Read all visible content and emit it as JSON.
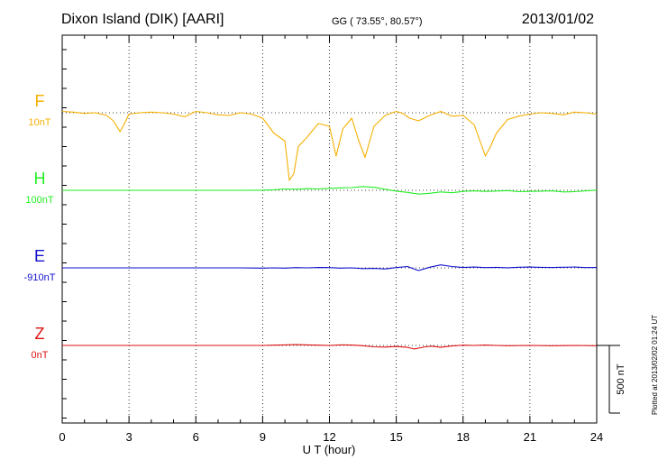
{
  "header": {
    "station": "Dixon Island (DIK)  [AARI]",
    "coords": "GG ( 73.55°,  80.57°)",
    "date": "2013/01/02"
  },
  "plotted_note": "Plotted at 2013/02/02 01:24 UT",
  "chart_data": {
    "type": "line",
    "xlabel": "U T (hour)",
    "xlim": [
      0,
      24
    ],
    "x_ticks": [
      0,
      3,
      6,
      9,
      12,
      15,
      18,
      21,
      24
    ],
    "scale_bar": {
      "value": 500,
      "label": "500 nT"
    },
    "series": [
      {
        "name": "F",
        "scale_label": "10nT",
        "color": "#f5b000",
        "x": [
          0,
          0.5,
          1,
          1.5,
          2,
          2.3,
          2.6,
          2.8,
          3,
          3.5,
          4,
          4.5,
          5,
          5.5,
          6,
          6.5,
          7,
          7.5,
          8,
          8.5,
          9,
          9.5,
          10,
          10.2,
          10.4,
          10.6,
          11,
          11.5,
          12,
          12.3,
          12.6,
          13,
          13.3,
          13.6,
          14,
          14.5,
          15,
          15.3,
          15.6,
          16,
          16.5,
          17,
          17.5,
          18,
          18.5,
          19,
          19.2,
          19.5,
          20,
          20.5,
          21,
          21.5,
          22,
          22.5,
          23,
          23.5,
          24
        ],
        "y": [
          10,
          5,
          -5,
          0,
          -20,
          -60,
          -140,
          -80,
          -10,
          0,
          5,
          0,
          -10,
          -30,
          10,
          0,
          -15,
          -20,
          0,
          -10,
          -40,
          -150,
          -210,
          -500,
          -450,
          -250,
          -180,
          -80,
          -100,
          -320,
          -120,
          -40,
          -200,
          -330,
          -100,
          -20,
          10,
          -5,
          -40,
          -60,
          -20,
          10,
          -25,
          -20,
          -90,
          -320,
          -260,
          -150,
          -50,
          -25,
          -10,
          0,
          -5,
          -15,
          5,
          0,
          -10
        ]
      },
      {
        "name": "H",
        "scale_label": "100nT",
        "color": "#22ee22",
        "x": [
          0,
          1,
          2,
          3,
          4,
          5,
          6,
          7,
          8,
          9,
          9.5,
          10,
          10.5,
          11,
          11.5,
          12,
          12.5,
          13,
          13.5,
          14,
          14.5,
          15,
          15.5,
          16,
          16.5,
          17,
          17.5,
          18,
          18.5,
          19,
          19.5,
          20,
          20.5,
          21,
          21.5,
          22,
          22.5,
          23,
          23.5,
          24
        ],
        "y": [
          0,
          0,
          0,
          0,
          0,
          0,
          0,
          0,
          0,
          1,
          4,
          10,
          8,
          12,
          10,
          15,
          18,
          20,
          28,
          22,
          8,
          -6,
          -15,
          -28,
          -22,
          -12,
          -18,
          -8,
          -4,
          -8,
          -5,
          -2,
          -10,
          -8,
          -6,
          -4,
          -12,
          -10,
          -4,
          1
        ]
      },
      {
        "name": "E",
        "scale_label": "-910nT",
        "color": "#1111cc",
        "x": [
          0,
          1,
          2,
          3,
          4,
          5,
          6,
          7,
          8,
          9,
          9.5,
          10,
          10.5,
          11,
          11.5,
          12,
          12.5,
          13,
          13.5,
          14,
          14.5,
          15,
          15.5,
          16,
          16.5,
          17,
          17.5,
          18,
          18.5,
          19,
          19.5,
          20,
          20.5,
          21,
          21.5,
          22,
          22.5,
          23,
          23.5,
          24
        ],
        "y": [
          0,
          0,
          0,
          0,
          0,
          0,
          0,
          0,
          0,
          -2,
          0,
          -2,
          2,
          0,
          3,
          2,
          -2,
          0,
          -5,
          -4,
          -8,
          2,
          10,
          -20,
          5,
          22,
          10,
          3,
          6,
          2,
          4,
          1,
          5,
          6,
          4,
          3,
          5,
          6,
          2,
          3
        ]
      },
      {
        "name": "Z",
        "scale_label": "0nT",
        "color": "#dd1111",
        "x": [
          0,
          1,
          2,
          3,
          4,
          5,
          6,
          7,
          8,
          9,
          9.5,
          10,
          10.5,
          11,
          11.5,
          12,
          12.5,
          13,
          13.5,
          14,
          14.5,
          15,
          15.5,
          15.8,
          16,
          16.3,
          16.6,
          17,
          17.5,
          18,
          18.5,
          19,
          19.5,
          20,
          21,
          22,
          23,
          24
        ],
        "y": [
          0,
          0,
          0,
          0,
          0,
          0,
          0,
          0,
          0,
          0,
          2,
          4,
          6,
          4,
          2,
          0,
          4,
          3,
          -2,
          -10,
          -12,
          -8,
          -14,
          -26,
          -20,
          -10,
          -5,
          -14,
          -4,
          2,
          0,
          3,
          0,
          -2,
          0,
          -2,
          0,
          -2
        ]
      }
    ]
  }
}
